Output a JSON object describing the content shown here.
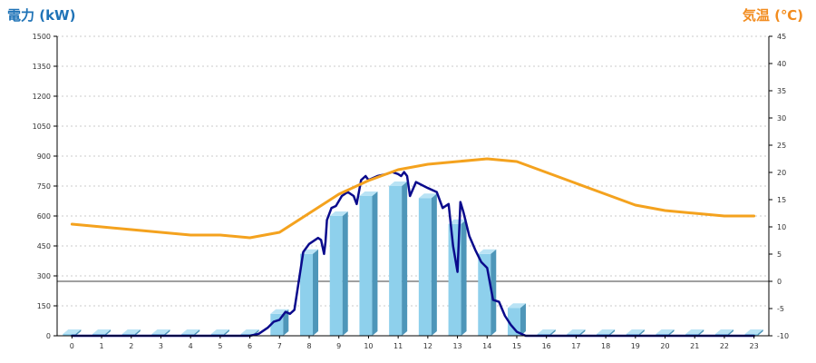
{
  "chart_data": {
    "type": "bar+line",
    "left_axis": {
      "label": "電力 (kW)",
      "ylim": [
        0,
        1500
      ],
      "ticks": [
        0,
        150,
        300,
        450,
        600,
        750,
        900,
        1050,
        1200,
        1350,
        1500
      ]
    },
    "right_axis": {
      "label": "気温 (℃)",
      "ylim": [
        -10,
        45
      ],
      "ticks": [
        -10,
        -5,
        0,
        5,
        10,
        15,
        20,
        25,
        30,
        35,
        40,
        45
      ]
    },
    "categories": [
      "0",
      "1",
      "2",
      "3",
      "4",
      "5",
      "6",
      "7",
      "8",
      "9",
      "10",
      "11",
      "12",
      "13",
      "14",
      "15",
      "16",
      "17",
      "18",
      "19",
      "20",
      "21",
      "22",
      "23"
    ],
    "grid": "horizontal dotted",
    "zero_line": "right axis 0",
    "series": [
      {
        "axis": "left",
        "type": "bar",
        "values": [
          0,
          0,
          0,
          0,
          0,
          0,
          0,
          110,
          410,
          600,
          700,
          750,
          690,
          560,
          410,
          140,
          0,
          0,
          0,
          0,
          0,
          0,
          0,
          0
        ]
      },
      {
        "axis": "left",
        "type": "line",
        "x": [
          0,
          1,
          2,
          3,
          4,
          5,
          6,
          6.3,
          6.6,
          6.8,
          7.0,
          7.2,
          7.35,
          7.5,
          7.8,
          8.0,
          8.3,
          8.4,
          8.5,
          8.55,
          8.6,
          8.75,
          8.9,
          9.1,
          9.3,
          9.5,
          9.6,
          9.75,
          9.9,
          10.0,
          10.3,
          10.6,
          10.8,
          11.0,
          11.1,
          11.2,
          11.3,
          11.4,
          11.6,
          12.0,
          12.3,
          12.5,
          12.7,
          12.85,
          13.0,
          13.1,
          13.2,
          13.4,
          13.6,
          13.8,
          14.0,
          14.2,
          14.4,
          14.6,
          14.8,
          15.0,
          15.3,
          15.6,
          15.8,
          16,
          17,
          18,
          19,
          20,
          21,
          22,
          23
        ],
        "values": [
          0,
          0,
          0,
          0,
          0,
          0,
          0,
          10,
          40,
          70,
          80,
          120,
          110,
          130,
          420,
          460,
          490,
          480,
          410,
          470,
          580,
          640,
          650,
          700,
          720,
          700,
          660,
          780,
          800,
          780,
          800,
          810,
          820,
          810,
          800,
          820,
          800,
          700,
          770,
          740,
          720,
          640,
          660,
          450,
          320,
          670,
          620,
          500,
          430,
          370,
          340,
          180,
          170,
          100,
          55,
          20,
          0,
          0,
          0,
          0,
          0,
          0,
          0,
          0,
          0,
          0,
          0
        ]
      },
      {
        "axis": "right",
        "type": "line",
        "x": [
          0,
          1,
          2,
          3,
          4,
          5,
          6,
          7,
          8,
          9,
          10,
          11,
          12,
          13,
          14,
          15,
          16,
          17,
          18,
          19,
          20,
          21,
          22,
          23
        ],
        "values": [
          10.5,
          10,
          9.5,
          9,
          8.5,
          8.5,
          8,
          9,
          12.5,
          16,
          18.5,
          20.5,
          21.5,
          22,
          22.5,
          22,
          20,
          18,
          16,
          14,
          13,
          12.5,
          12,
          12
        ]
      }
    ]
  },
  "colors": {
    "left_label": "#1f73b7",
    "right_label": "#f28c1e",
    "bar_face": "#8ed0ec",
    "bar_top": "#b9e3f5",
    "bar_side": "#4e96b9",
    "power_line": "#0a0a8c",
    "temp_line": "#f4a21e",
    "grid": "#bbbbbb"
  }
}
